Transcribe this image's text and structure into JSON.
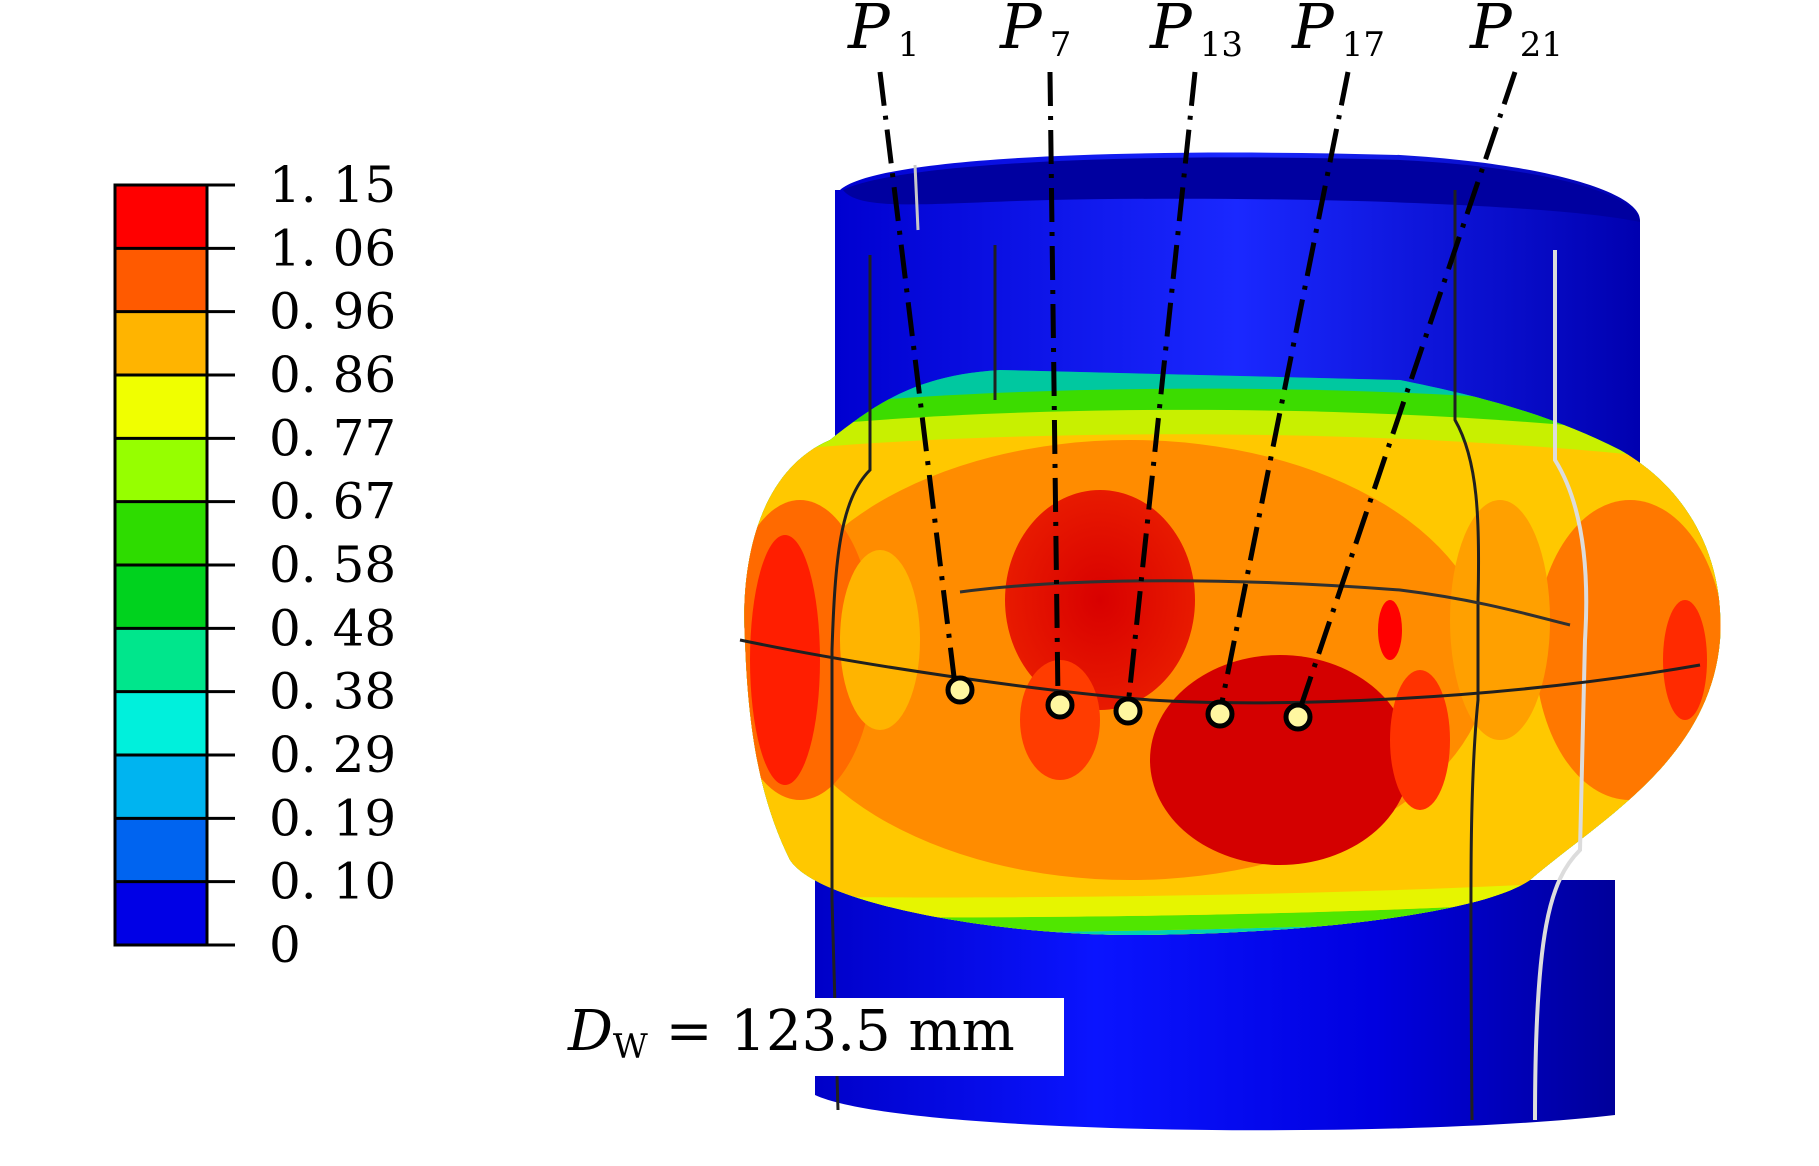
{
  "legend": {
    "labels": [
      "1. 15",
      "1. 06",
      "0. 96",
      "0. 86",
      "0. 77",
      "0. 67",
      "0. 58",
      "0. 48",
      "0. 38",
      "0. 29",
      "0. 19",
      "0. 10",
      "0"
    ],
    "colors": [
      "#ff0000",
      "#ff5a00",
      "#ffb400",
      "#f0ff00",
      "#96ff00",
      "#2edc00",
      "#00d21e",
      "#00e68c",
      "#00f0dc",
      "#00b4f0",
      "#0064f0",
      "#0000e6"
    ]
  },
  "points": [
    {
      "main": "P",
      "sub": "1"
    },
    {
      "main": "P",
      "sub": "7"
    },
    {
      "main": "P",
      "sub": "13"
    },
    {
      "main": "P",
      "sub": "17"
    },
    {
      "main": "P",
      "sub": "21"
    }
  ],
  "dimension": {
    "symbol": "D",
    "sub": "W",
    "value": " = 123.5 mm"
  },
  "colors": {
    "tube_blue": "#0000e6",
    "marker_fill": "#fff7a0"
  }
}
